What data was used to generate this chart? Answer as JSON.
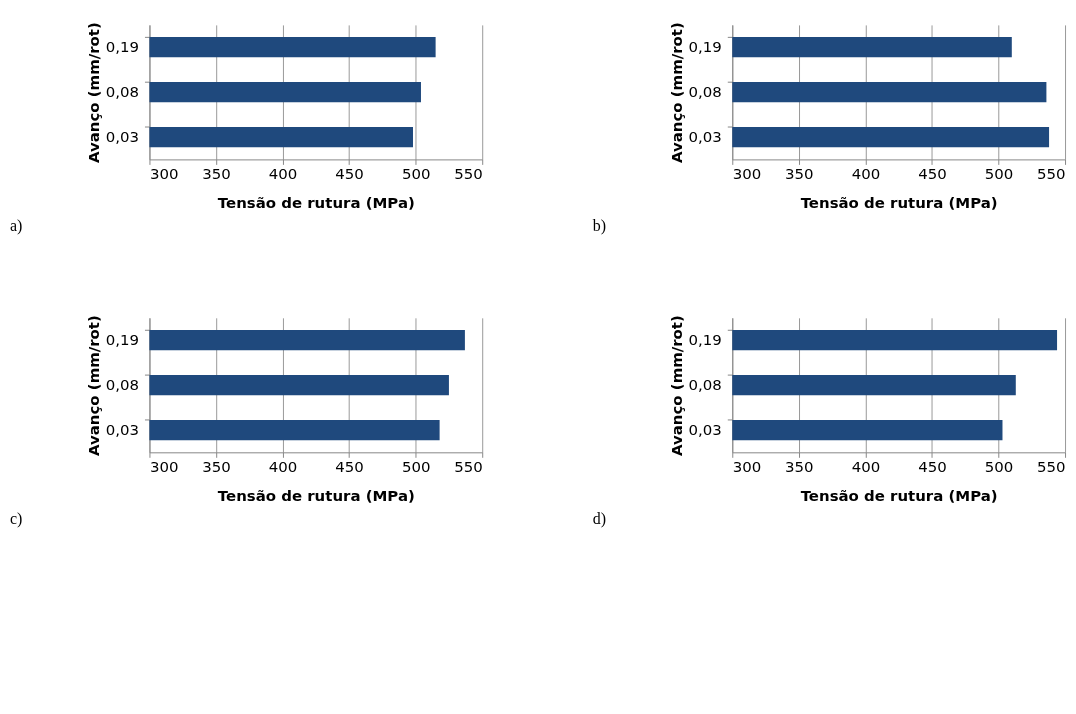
{
  "chart_data": [
    {
      "type": "bar",
      "orientation": "horizontal",
      "categories": [
        "0,19",
        "0,08",
        "0,03"
      ],
      "values": [
        515,
        504,
        498
      ],
      "color": "#1f497d",
      "xlabel": "Tensão de rutura (MPa)",
      "ylabel": "Avanço (mm/rot)",
      "xlim": [
        300,
        550
      ],
      "xticks": [
        300,
        350,
        400,
        450,
        500,
        550
      ],
      "grid": "x",
      "annotations": [
        "a)"
      ]
    },
    {
      "type": "bar",
      "orientation": "horizontal",
      "categories": [
        "0,19",
        "0,08",
        "0,03"
      ],
      "values": [
        510,
        536,
        538
      ],
      "color": "#1f497d",
      "xlabel": "Tensão de rutura (MPa)",
      "ylabel": "Avanço (mm/rot)",
      "xlim": [
        300,
        550
      ],
      "xticks": [
        300,
        350,
        400,
        450,
        500,
        550
      ],
      "grid": "x",
      "annotations": [
        "b)"
      ]
    },
    {
      "type": "bar",
      "orientation": "horizontal",
      "categories": [
        "0,19",
        "0,08",
        "0,03"
      ],
      "values": [
        537,
        525,
        518
      ],
      "color": "#1f497d",
      "xlabel": "Tensão de rutura (MPa)",
      "ylabel": "Avanço (mm/rot)",
      "xlim": [
        300,
        550
      ],
      "xticks": [
        300,
        350,
        400,
        450,
        500,
        550
      ],
      "grid": "x",
      "annotations": [
        "c)"
      ]
    },
    {
      "type": "bar",
      "orientation": "horizontal",
      "categories": [
        "0,19",
        "0,08",
        "0,03"
      ],
      "values": [
        544,
        513,
        503
      ],
      "color": "#1f497d",
      "xlabel": "Tensão de rutura (MPa)",
      "ylabel": "Avanço (mm/rot)",
      "xlim": [
        300,
        550
      ],
      "xticks": [
        300,
        350,
        400,
        450,
        500,
        550
      ],
      "grid": "x",
      "annotations": [
        "d)"
      ]
    }
  ]
}
